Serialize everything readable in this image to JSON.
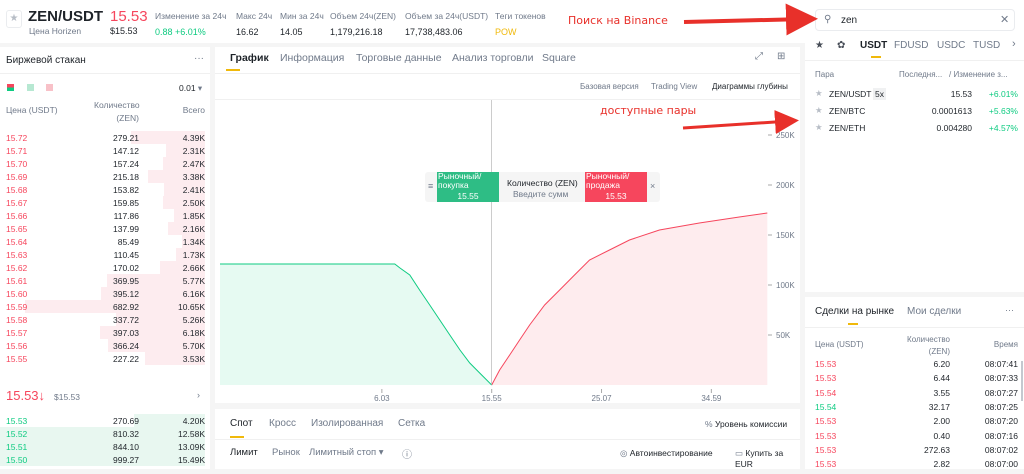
{
  "header": {
    "pair": "ZEN/USDT",
    "subtitle": "Цена Horizen",
    "price": "15.53",
    "price_usd": "$15.53",
    "stats": [
      {
        "label": "Изменение за 24ч",
        "value": "0.88 +6.01%",
        "color": "#0ecb81"
      },
      {
        "label": "Макс 24ч",
        "value": "16.62"
      },
      {
        "label": "Мин за 24ч",
        "value": "14.05"
      },
      {
        "label": "Объем 24ч(ZEN)",
        "value": "1,179,216.18"
      },
      {
        "label": "Объем за 24ч(USDT)",
        "value": "17,738,483.06"
      },
      {
        "label": "Теги токенов",
        "value": "POW",
        "color": "#f0b90b"
      }
    ]
  },
  "annotations": {
    "search": "Поиск на Binance",
    "pairs": "доступные пары"
  },
  "orderbook": {
    "title": "Биржевой стакан",
    "more": "···",
    "precision": "0.01",
    "col_price": "Цена (USDT)",
    "col_qty": "Количество (ZEN)",
    "col_total": "Всего",
    "asks": [
      [
        "15.72",
        "279.21",
        "4.39K"
      ],
      [
        "15.71",
        "147.12",
        "2.31K"
      ],
      [
        "15.70",
        "157.24",
        "2.47K"
      ],
      [
        "15.69",
        "215.18",
        "3.38K"
      ],
      [
        "15.68",
        "153.82",
        "2.41K"
      ],
      [
        "15.67",
        "159.85",
        "2.50K"
      ],
      [
        "15.66",
        "117.86",
        "1.85K"
      ],
      [
        "15.65",
        "137.99",
        "2.16K"
      ],
      [
        "15.64",
        "85.49",
        "1.34K"
      ],
      [
        "15.63",
        "110.45",
        "1.73K"
      ],
      [
        "15.62",
        "170.02",
        "2.66K"
      ],
      [
        "15.61",
        "369.95",
        "5.77K"
      ],
      [
        "15.60",
        "395.12",
        "6.16K"
      ],
      [
        "15.59",
        "682.92",
        "10.65K"
      ],
      [
        "15.58",
        "337.72",
        "5.26K"
      ],
      [
        "15.57",
        "397.03",
        "6.18K"
      ],
      [
        "15.56",
        "366.24",
        "5.70K"
      ],
      [
        "15.55",
        "227.22",
        "3.53K"
      ]
    ],
    "last_price": "15.53",
    "last_arrow": "↓",
    "last_usd": "$15.53",
    "bids": [
      [
        "15.53",
        "270.69",
        "4.20K"
      ],
      [
        "15.52",
        "810.32",
        "12.58K"
      ],
      [
        "15.51",
        "844.10",
        "13.09K"
      ],
      [
        "15.50",
        "999.27",
        "15.49K"
      ]
    ]
  },
  "chart_tabs": [
    "График",
    "Информация",
    "Торговые данные",
    "Анализ торговли",
    "Square"
  ],
  "chart_views": [
    "Базовая версия",
    "Trading View",
    "Диаграммы глубины"
  ],
  "quick_trade": {
    "buy": "Рыночный/покупка",
    "buy_price": "15.55",
    "qty_label": "Количество (ZEN)",
    "qty_placeholder": "Введите сумм",
    "sell": "Рыночный/продажа",
    "sell_price": "15.53"
  },
  "chart_data": {
    "type": "area",
    "xlim": [
      -8,
      39.5
    ],
    "ylim": [
      0,
      250000
    ],
    "x_ticks": [
      "6.03",
      "15.55",
      "25.07",
      "34.59"
    ],
    "x_tick_values": [
      6.03,
      15.55,
      25.07,
      34.59
    ],
    "y_ticks": [
      "50K",
      "100K",
      "150K",
      "200K",
      "250K"
    ],
    "y_tick_values": [
      50000,
      100000,
      150000,
      200000,
      250000
    ],
    "mid_price": 15.55,
    "series": [
      {
        "side": "bids",
        "color": "#0ecb81",
        "points": [
          [
            -8,
            121000
          ],
          [
            7.15,
            121000
          ],
          [
            7.6,
            117000
          ],
          [
            8.45,
            110000
          ],
          [
            9.3,
            95000
          ],
          [
            10.18,
            80000
          ],
          [
            11.05,
            65000
          ],
          [
            11.92,
            50000
          ],
          [
            12.8,
            35000
          ],
          [
            13.65,
            22000
          ],
          [
            14.51,
            12000
          ],
          [
            15.55,
            0
          ]
        ]
      },
      {
        "side": "asks",
        "color": "#f6465d",
        "points": [
          [
            15.55,
            0
          ],
          [
            16.24,
            15000
          ],
          [
            17.11,
            30000
          ],
          [
            17.97,
            45000
          ],
          [
            18.84,
            60000
          ],
          [
            20.14,
            80000
          ],
          [
            21.44,
            95000
          ],
          [
            22.73,
            110000
          ],
          [
            24.03,
            125000
          ],
          [
            25.76,
            135000
          ],
          [
            27.49,
            145000
          ],
          [
            30.09,
            155000
          ],
          [
            33.55,
            162000
          ],
          [
            37.01,
            168000
          ],
          [
            39.44,
            172000
          ]
        ]
      }
    ]
  },
  "trade_panel": {
    "tabs": [
      "Спот",
      "Кросс",
      "Изолированная",
      "Сетка"
    ],
    "fee": "Уровень комиссии",
    "order_types": [
      "Лимит",
      "Рынок",
      "Лимитный стоп ▾"
    ],
    "auto_invest": "Автоинвестирование",
    "buy_eur": "Купить за EUR"
  },
  "market": {
    "search": "zen",
    "tabs": [
      "USDT",
      "FDUSD",
      "USDC",
      "TUSD"
    ],
    "col_pair": "Пара",
    "col_last": "Последня...",
    "col_change": "/ Изменение з...",
    "pairs": [
      {
        "pair": "ZEN/USDT",
        "badge": "5x",
        "last": "15.53",
        "change": "+6.01%"
      },
      {
        "pair": "ZEN/BTC",
        "last": "0.0001613",
        "change": "+5.63%"
      },
      {
        "pair": "ZEN/ETH",
        "last": "0.004280",
        "change": "+4.57%"
      }
    ]
  },
  "trades": {
    "tabs": [
      "Сделки на рынке",
      "Мои сделки"
    ],
    "more": "···",
    "col_price": "Цена (USDT)",
    "col_qty": "Количество (ZEN)",
    "col_time": "Время",
    "rows": [
      {
        "price": "15.53",
        "qty": "6.20",
        "time": "08:07:41",
        "side": "sell"
      },
      {
        "price": "15.53",
        "qty": "6.44",
        "time": "08:07:33",
        "side": "sell"
      },
      {
        "price": "15.54",
        "qty": "3.55",
        "time": "08:07:27",
        "side": "sell"
      },
      {
        "price": "15.54",
        "qty": "32.17",
        "time": "08:07:25",
        "side": "buy"
      },
      {
        "price": "15.53",
        "qty": "2.00",
        "time": "08:07:20",
        "side": "sell"
      },
      {
        "price": "15.53",
        "qty": "0.40",
        "time": "08:07:16",
        "side": "sell"
      },
      {
        "price": "15.53",
        "qty": "272.63",
        "time": "08:07:02",
        "side": "sell"
      },
      {
        "price": "15.53",
        "qty": "2.82",
        "time": "08:07:00",
        "side": "sell"
      }
    ]
  }
}
